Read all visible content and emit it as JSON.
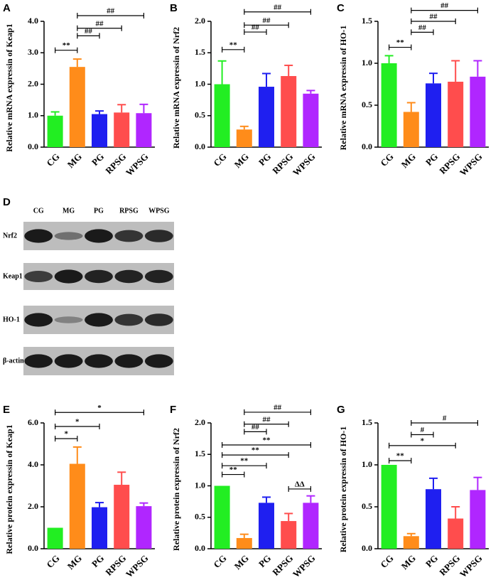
{
  "chart_data": [
    {
      "type": "bar",
      "panel": "A",
      "ylabel": "Relative mRNA expressin of Keap1",
      "categories": [
        "CG",
        "MG",
        "PG",
        "RPSG",
        "WPSG"
      ],
      "values": [
        1.0,
        2.55,
        1.05,
        1.1,
        1.08
      ],
      "errors": [
        0.12,
        0.25,
        0.1,
        0.25,
        0.28
      ],
      "colors": [
        "#22ee22",
        "#ff8c1a",
        "#1f1ff0",
        "#ff4d4d",
        "#b026ff"
      ],
      "ylim": [
        0,
        4
      ],
      "yticks": [
        {
          "value": 0,
          "label": "0.0"
        },
        {
          "value": 1,
          "label": "1.0"
        },
        {
          "value": 2,
          "label": "2.0"
        },
        {
          "value": 3,
          "label": "3.0"
        },
        {
          "value": 4,
          "label": "4.0"
        }
      ],
      "annotations": [
        {
          "text": "**",
          "between": [
            "CG",
            "MG"
          ],
          "y": 3.08
        },
        {
          "text": "##",
          "between": [
            "MG",
            "PG"
          ],
          "y": 3.54
        },
        {
          "text": "##",
          "between": [
            "MG",
            "RPSG"
          ],
          "y": 3.78
        },
        {
          "text": "##",
          "between": [
            "MG",
            "WPSG"
          ],
          "y": 4.18
        }
      ]
    },
    {
      "type": "bar",
      "panel": "B",
      "ylabel": "Relative mRNA expressin of Nrf2",
      "categories": [
        "CG",
        "MG",
        "PG",
        "RPSG",
        "WPSG"
      ],
      "values": [
        1.0,
        0.28,
        0.96,
        1.13,
        0.85
      ],
      "errors": [
        0.37,
        0.05,
        0.21,
        0.17,
        0.05
      ],
      "colors": [
        "#22ee22",
        "#ff8c1a",
        "#1f1ff0",
        "#ff4d4d",
        "#b026ff"
      ],
      "ylim": [
        0,
        2
      ],
      "yticks": [
        {
          "value": 0,
          "label": "0.0"
        },
        {
          "value": 0.5,
          "label": "0.5"
        },
        {
          "value": 1,
          "label": "1.0"
        },
        {
          "value": 1.5,
          "label": "1.5"
        },
        {
          "value": 2,
          "label": "2.0"
        }
      ],
      "annotations": [
        {
          "text": "**",
          "between": [
            "CG",
            "MG"
          ],
          "y": 1.55
        },
        {
          "text": "##",
          "between": [
            "MG",
            "PG"
          ],
          "y": 1.83
        },
        {
          "text": "##",
          "between": [
            "MG",
            "RPSG"
          ],
          "y": 1.94
        },
        {
          "text": "##",
          "between": [
            "MG",
            "WPSG"
          ],
          "y": 2.15
        }
      ]
    },
    {
      "type": "bar",
      "panel": "C",
      "ylabel": "Relative mRNA expressin of HO-1",
      "categories": [
        "CG",
        "MG",
        "PG",
        "RPSG",
        "WPSG"
      ],
      "values": [
        1.0,
        0.42,
        0.76,
        0.78,
        0.84
      ],
      "errors": [
        0.09,
        0.11,
        0.12,
        0.25,
        0.19
      ],
      "colors": [
        "#22ee22",
        "#ff8c1a",
        "#1f1ff0",
        "#ff4d4d",
        "#b026ff"
      ],
      "ylim": [
        0,
        1.5
      ],
      "yticks": [
        {
          "value": 0,
          "label": "0.0"
        },
        {
          "value": 0.5,
          "label": "0.5"
        },
        {
          "value": 1,
          "label": "1.0"
        },
        {
          "value": 1.5,
          "label": "1.5"
        }
      ],
      "annotations": [
        {
          "text": "**",
          "between": [
            "CG",
            "MG"
          ],
          "y": 1.19
        },
        {
          "text": "##",
          "between": [
            "MG",
            "PG"
          ],
          "y": 1.37
        },
        {
          "text": "##",
          "between": [
            "MG",
            "RPSG"
          ],
          "y": 1.5
        },
        {
          "text": "##",
          "between": [
            "MG",
            "WPSG"
          ],
          "y": 1.63
        }
      ]
    },
    {
      "type": "bar",
      "panel": "E",
      "ylabel": "Relative protein expressin of Keap1",
      "categories": [
        "CG",
        "MG",
        "PG",
        "RPSG",
        "WPSG"
      ],
      "values": [
        1.0,
        4.05,
        1.98,
        3.05,
        2.03
      ],
      "errors": [
        0,
        0.8,
        0.22,
        0.6,
        0.15
      ],
      "colors": [
        "#22ee22",
        "#ff8c1a",
        "#1f1ff0",
        "#ff4d4d",
        "#b026ff"
      ],
      "ylim": [
        0,
        6
      ],
      "yticks": [
        {
          "value": 0,
          "label": "0.0"
        },
        {
          "value": 2,
          "label": "2.0"
        },
        {
          "value": 4,
          "label": "4.0"
        },
        {
          "value": 6,
          "label": "6.0"
        }
      ],
      "annotations": [
        {
          "text": "*",
          "between": [
            "CG",
            "MG"
          ],
          "y": 5.25
        },
        {
          "text": "*",
          "between": [
            "CG",
            "PG"
          ],
          "y": 5.83
        },
        {
          "text": "*",
          "between": [
            "CG",
            "WPSG"
          ],
          "y": 6.5
        }
      ]
    },
    {
      "type": "bar",
      "panel": "F",
      "ylabel": "Relative protein expressin of Nrf2",
      "categories": [
        "CG",
        "MG",
        "PG",
        "RPSG",
        "WPSG"
      ],
      "values": [
        1.0,
        0.17,
        0.73,
        0.44,
        0.73
      ],
      "errors": [
        0,
        0.06,
        0.09,
        0.12,
        0.11
      ],
      "colors": [
        "#22ee22",
        "#ff8c1a",
        "#1f1ff0",
        "#ff4d4d",
        "#b026ff"
      ],
      "ylim": [
        0,
        2
      ],
      "yticks": [
        {
          "value": 0,
          "label": "0.0"
        },
        {
          "value": 0.5,
          "label": "0.5"
        },
        {
          "value": 1,
          "label": "1.0"
        },
        {
          "value": 1.5,
          "label": "1.5"
        },
        {
          "value": 2,
          "label": "2.0"
        }
      ],
      "annotations": [
        {
          "text": "##",
          "between": [
            "MG",
            "WPSG"
          ],
          "y": 2.17
        },
        {
          "text": "##",
          "between": [
            "MG",
            "RPSG"
          ],
          "y": 1.98
        },
        {
          "text": "##",
          "between": [
            "MG",
            "PG"
          ],
          "y": 1.86
        },
        {
          "text": "**",
          "between": [
            "CG",
            "WPSG"
          ],
          "y": 1.65
        },
        {
          "text": "**",
          "between": [
            "CG",
            "RPSG"
          ],
          "y": 1.49
        },
        {
          "text": "**",
          "between": [
            "CG",
            "PG"
          ],
          "y": 1.32
        },
        {
          "text": "**",
          "between": [
            "CG",
            "MG"
          ],
          "y": 1.18
        },
        {
          "text": "ΔΔ",
          "between": [
            "RPSG",
            "WPSG"
          ],
          "y": 0.95
        }
      ]
    },
    {
      "type": "bar",
      "panel": "G",
      "ylabel": "Relative protein expressin of HO-1",
      "categories": [
        "CG",
        "MG",
        "PG",
        "RPSG",
        "WPSG"
      ],
      "values": [
        1.0,
        0.15,
        0.71,
        0.36,
        0.7
      ],
      "errors": [
        0,
        0.03,
        0.13,
        0.14,
        0.15
      ],
      "colors": [
        "#22ee22",
        "#ff8c1a",
        "#1f1ff0",
        "#ff4d4d",
        "#b026ff"
      ],
      "ylim": [
        0,
        1.5
      ],
      "yticks": [
        {
          "value": 0,
          "label": "0.0"
        },
        {
          "value": 0.5,
          "label": "0.5"
        },
        {
          "value": 1,
          "label": "1.0"
        },
        {
          "value": 1.5,
          "label": "1.5"
        }
      ],
      "annotations": [
        {
          "text": "#",
          "between": [
            "MG",
            "WPSG"
          ],
          "y": 1.5
        },
        {
          "text": "#",
          "between": [
            "MG",
            "PG"
          ],
          "y": 1.36
        },
        {
          "text": "*",
          "between": [
            "CG",
            "RPSG"
          ],
          "y": 1.23
        },
        {
          "text": "**",
          "between": [
            "CG",
            "MG"
          ],
          "y": 1.05
        }
      ]
    }
  ],
  "blot": {
    "panel": "D",
    "lanes": [
      "CG",
      "MG",
      "PG",
      "RPSG",
      "WPSG"
    ],
    "rows": [
      "Nrf2",
      "Keap1",
      "HO-1",
      "β-actin"
    ]
  }
}
